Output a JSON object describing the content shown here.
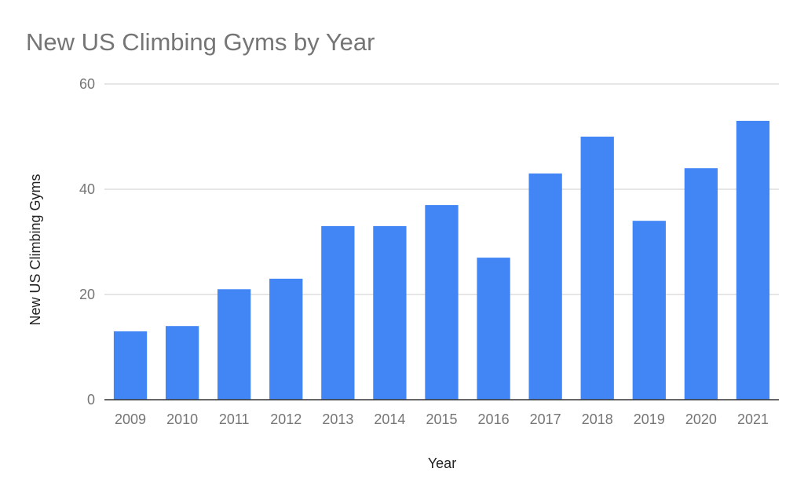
{
  "chart_data": {
    "type": "bar",
    "title": "New US Climbing Gyms by Year",
    "xlabel": "Year",
    "ylabel": "New US Climbing Gyms",
    "categories": [
      "2009",
      "2010",
      "2011",
      "2012",
      "2013",
      "2014",
      "2015",
      "2016",
      "2017",
      "2018",
      "2019",
      "2020",
      "2021"
    ],
    "series": [
      {
        "values": [
          13,
          14,
          21,
          23,
          33,
          33,
          37,
          27,
          43,
          50,
          34,
          44,
          53
        ]
      }
    ],
    "ylim": [
      0,
      60
    ],
    "yticks": [
      0,
      20,
      40,
      60
    ],
    "grid": true,
    "legend": "none",
    "bar_color": "#4285F4"
  }
}
